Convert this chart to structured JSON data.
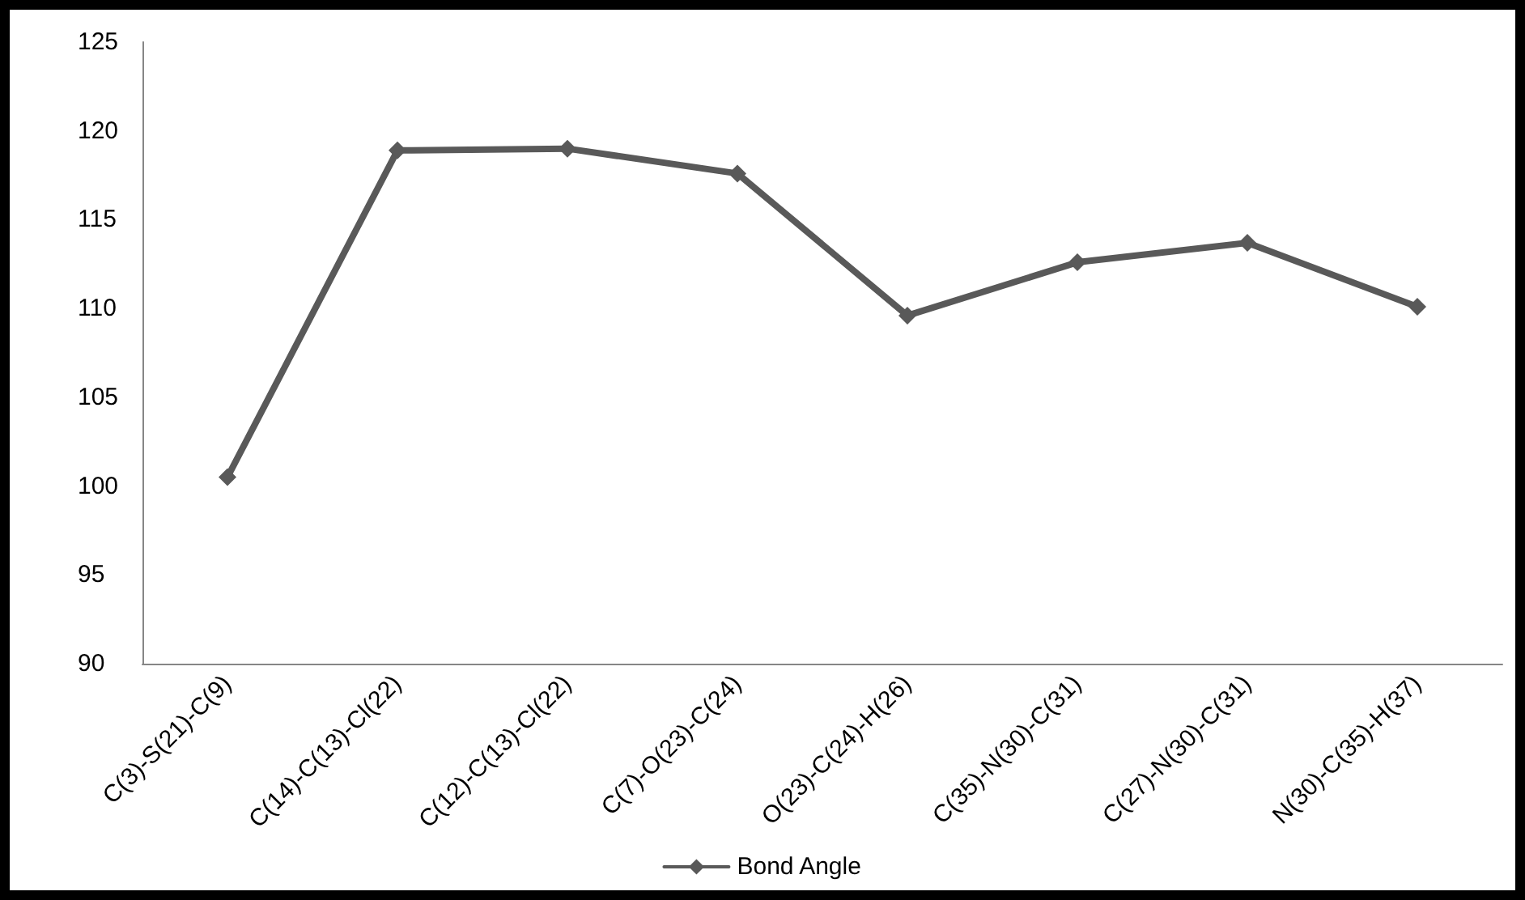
{
  "chart_data": {
    "type": "line",
    "categories": [
      "C(3)-S(21)-C(9)",
      "C(14)-C(13)-Cl(22)",
      "C(12)-C(13)-Cl(22)",
      "C(7)-O(23)-C(24)",
      "O(23)-C(24)-H(26)",
      "C(35)-N(30)-C(31)",
      "C(27)-N(30)-C(31)",
      "N(30)-C(35)-H(37)"
    ],
    "series": [
      {
        "name": "Bond Angle",
        "color": "#595959",
        "values": [
          100.5,
          118.9,
          119.0,
          117.6,
          109.6,
          112.6,
          113.7,
          110.1
        ]
      }
    ],
    "ylim": [
      90,
      125
    ],
    "yticks": [
      90,
      95,
      100,
      105,
      110,
      115,
      120,
      125
    ],
    "grid": false,
    "legend": "bottom",
    "marker": "diamond",
    "line_style": "solid"
  }
}
